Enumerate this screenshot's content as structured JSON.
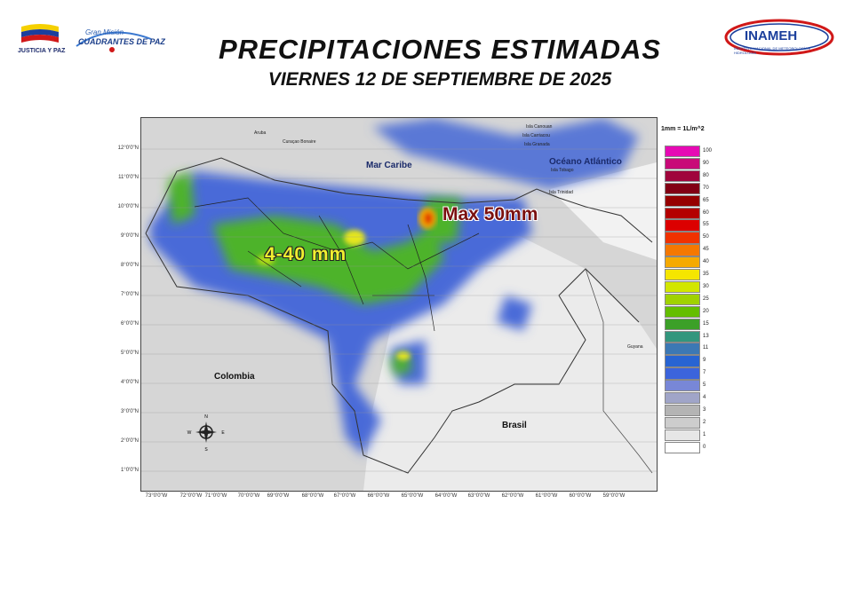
{
  "header": {
    "title": "PRECIPITACIONES ESTIMADAS",
    "subtitle": "VIERNES 12 DE SEPTIEMBRE DE 2025"
  },
  "logos": {
    "left_flag_text": "JUSTICIA Y PAZ",
    "mision_line1": "Gran Misión",
    "mision_line2": "CUADRANTES DE PAZ",
    "right_logo_text": "INAMEH",
    "right_logo_subtitle": "INSTITUTO NACIONAL DE METEOROLOGÍA E HIDROLOGÍA"
  },
  "map": {
    "lat_labels": [
      "12°0'0\"N",
      "11°0'0\"N",
      "10°0'0\"N",
      "9°0'0\"N",
      "8°0'0\"N",
      "7°0'0\"N",
      "6°0'0\"N",
      "5°0'0\"N",
      "4°0'0\"N",
      "3°0'0\"N",
      "2°0'0\"N",
      "1°0'0\"N"
    ],
    "lon_labels": [
      "73°0'0\"W",
      "72°0'0\"W",
      "71°0'0\"W",
      "70°0'0\"W",
      "69°0'0\"W",
      "68°0'0\"W",
      "67°0'0\"W",
      "66°0'0\"W",
      "65°0'0\"W",
      "64°0'0\"W",
      "63°0'0\"W",
      "62°0'0\"W",
      "61°0'0\"W",
      "60°0'0\"W",
      "59°0'0\"W"
    ],
    "places": {
      "mar_caribe": "Mar Caribe",
      "oceano_atlantico": "Océano Atlántico",
      "colombia": "Colombia",
      "brasil": "Brasil",
      "guyana": "Guyana",
      "aruba": "Aruba",
      "curacao_bonaire": "Curaçao  Bonaire",
      "la_trinidad": "Isla Trinidad",
      "tobago": "Isla Tobago",
      "granada": "Isla Granada",
      "canouan": "Isla Canouan",
      "carriacou": "Isla Carriacou"
    },
    "annotations": {
      "range": "4-40 mm",
      "max": "Max 50mm"
    },
    "compass": {
      "n": "N",
      "s": "S",
      "e": "E",
      "w": "W"
    }
  },
  "legend": {
    "unit": "1mm = 1L/m^2",
    "items": [
      {
        "label": "100",
        "color": "#e60ab4"
      },
      {
        "label": "90",
        "color": "#c80a78"
      },
      {
        "label": "80",
        "color": "#a0053c"
      },
      {
        "label": "70",
        "color": "#820014"
      },
      {
        "label": "65",
        "color": "#960000"
      },
      {
        "label": "60",
        "color": "#b40000"
      },
      {
        "label": "55",
        "color": "#dc0000"
      },
      {
        "label": "50",
        "color": "#f03200"
      },
      {
        "label": "45",
        "color": "#f57800"
      },
      {
        "label": "40",
        "color": "#f5aa00"
      },
      {
        "label": "35",
        "color": "#f5e600"
      },
      {
        "label": "30",
        "color": "#d2e600"
      },
      {
        "label": "25",
        "color": "#a0d200"
      },
      {
        "label": "20",
        "color": "#64be00"
      },
      {
        "label": "15",
        "color": "#3ca028"
      },
      {
        "label": "13",
        "color": "#32967d"
      },
      {
        "label": "11",
        "color": "#3c78b4"
      },
      {
        "label": "9",
        "color": "#2864d2"
      },
      {
        "label": "7",
        "color": "#3c64dc"
      },
      {
        "label": "5",
        "color": "#7887d7"
      },
      {
        "label": "4",
        "color": "#a0a5c8"
      },
      {
        "label": "3",
        "color": "#b4b4b4"
      },
      {
        "label": "2",
        "color": "#cdcdcd"
      },
      {
        "label": "1",
        "color": "#e6e6e6"
      },
      {
        "label": "0",
        "color": "#ffffff"
      }
    ]
  }
}
